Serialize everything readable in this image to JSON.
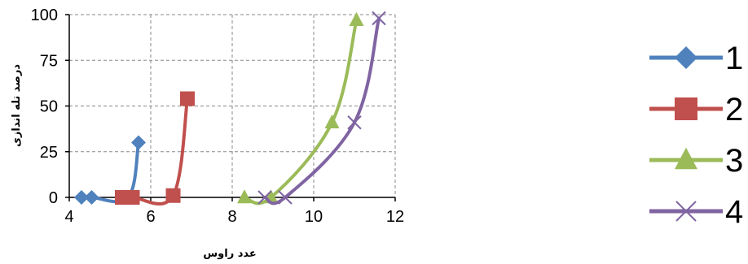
{
  "chart_data": {
    "type": "line",
    "title": "",
    "xlabel": "عدد راوس",
    "ylabel": "درصد تله اندازی",
    "xlim": [
      4,
      12
    ],
    "ylim": [
      0,
      100
    ],
    "xticks": [
      4,
      6,
      8,
      10,
      12
    ],
    "yticks": [
      0,
      25,
      50,
      75,
      100
    ],
    "grid": true,
    "legend_position": "right",
    "series": [
      {
        "name": "1",
        "color": "#4F81BD",
        "marker": "diamond",
        "x": [
          4.3,
          4.55,
          5.45,
          5.7
        ],
        "y": [
          0,
          0,
          0,
          30
        ]
      },
      {
        "name": "2",
        "color": "#C0504D",
        "marker": "square",
        "x": [
          5.3,
          5.55,
          6.55,
          6.9
        ],
        "y": [
          0,
          0,
          1,
          54
        ]
      },
      {
        "name": "3",
        "color": "#9BBB59",
        "marker": "triangle",
        "x": [
          8.3,
          8.95,
          10.45,
          11.05
        ],
        "y": [
          0,
          0,
          41,
          97
        ]
      },
      {
        "name": "4",
        "color": "#8064A2",
        "marker": "x",
        "x": [
          8.8,
          9.3,
          11.0,
          11.6
        ],
        "y": [
          0,
          0,
          41,
          98
        ]
      }
    ]
  }
}
